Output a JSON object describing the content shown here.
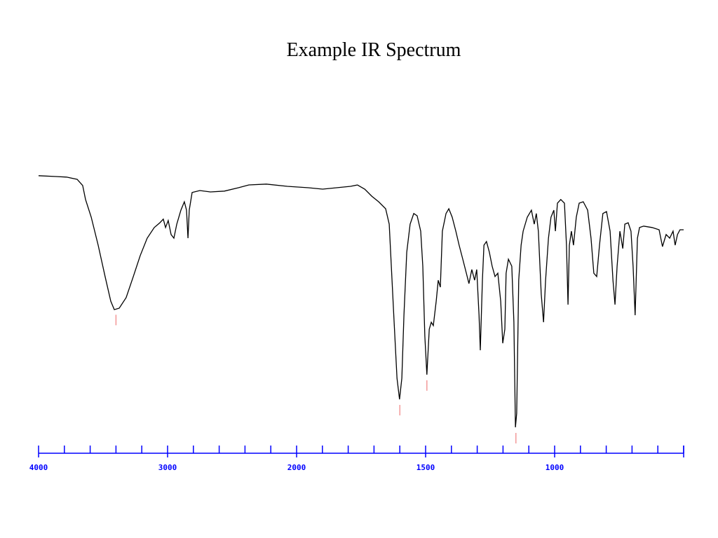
{
  "chart_data": {
    "type": "line",
    "title": "Example IR Spectrum",
    "xlim": [
      4000,
      500
    ],
    "xscale": {
      "break": 2000,
      "factor": 2
    },
    "xticks": [
      4000,
      3000,
      2000,
      1500,
      1000
    ],
    "xminor_ticks": [
      3800,
      3600,
      3400,
      3200,
      2800,
      2600,
      2400,
      2200,
      1900,
      1800,
      1700,
      1600,
      1400,
      1300,
      1200,
      1100,
      900,
      800,
      700,
      600,
      500
    ],
    "ylim": [
      0,
      100
    ],
    "axis_color": "#0000ff",
    "peak_color": "#f08080",
    "peaks": [
      3400,
      1600,
      1495,
      1150
    ],
    "x": [
      4000,
      3864,
      3783,
      3701,
      3658,
      3636,
      3592,
      3538,
      3484,
      3440,
      3413,
      3375,
      3321,
      3266,
      3212,
      3158,
      3103,
      3060,
      3033,
      3016,
      2995,
      2973,
      2951,
      2929,
      2897,
      2870,
      2853,
      2842,
      2832,
      2810,
      2750,
      2668,
      2560,
      2451,
      2370,
      2234,
      2071,
      1954,
      1899,
      1845,
      1791,
      1764,
      1736,
      1709,
      1682,
      1655,
      1641,
      1633,
      1622,
      1611,
      1601,
      1592,
      1584,
      1573,
      1560,
      1546,
      1533,
      1519,
      1511,
      1503,
      1495,
      1486,
      1478,
      1470,
      1459,
      1451,
      1443,
      1435,
      1421,
      1410,
      1397,
      1383,
      1370,
      1356,
      1342,
      1332,
      1321,
      1310,
      1302,
      1293,
      1288,
      1280,
      1274,
      1264,
      1253,
      1242,
      1231,
      1220,
      1209,
      1201,
      1193,
      1188,
      1179,
      1166,
      1158,
      1152,
      1147,
      1139,
      1130,
      1122,
      1106,
      1090,
      1079,
      1071,
      1063,
      1052,
      1043,
      1035,
      1024,
      1014,
      1003,
      997,
      989,
      976,
      962,
      954,
      948,
      943,
      935,
      927,
      916,
      905,
      889,
      872,
      859,
      848,
      837,
      826,
      813,
      799,
      785,
      774,
      766,
      758,
      747,
      736,
      728,
      715,
      704,
      696,
      688,
      679,
      671,
      655,
      622,
      595,
      582,
      568,
      554,
      541,
      533,
      524,
      514,
      500
    ],
    "series": [
      {
        "color": "#000000",
        "values": [
          94.8,
          94.5,
          94.3,
          93.5,
          91.3,
          86.3,
          80,
          70,
          58.8,
          50,
          47,
          47.5,
          51.3,
          58.8,
          66.3,
          72.5,
          76.3,
          78,
          79.3,
          76.3,
          78.8,
          73.8,
          72.5,
          77.5,
          82.5,
          85.5,
          82.5,
          72.5,
          82.5,
          88.8,
          89.5,
          89,
          89.3,
          90.5,
          91.5,
          91.8,
          91,
          90.5,
          90,
          90.5,
          91,
          91.5,
          90,
          87.5,
          85.5,
          83,
          77.5,
          62.5,
          42.5,
          22.5,
          15,
          22.5,
          45,
          67.5,
          77.5,
          81.3,
          80.5,
          75,
          62.5,
          37.5,
          23.8,
          40,
          42.5,
          41.3,
          50,
          57.5,
          55,
          75,
          81.3,
          83,
          80,
          75,
          70,
          65,
          60,
          56.3,
          61.3,
          57.5,
          61.3,
          45,
          32.5,
          57.5,
          70,
          71.3,
          67.5,
          62.5,
          58.8,
          60,
          50,
          35,
          40,
          60,
          65,
          62.5,
          42.5,
          5,
          10,
          57.5,
          70,
          75,
          80,
          82.5,
          77.5,
          81.3,
          75,
          52.5,
          42.5,
          57.5,
          72.5,
          80,
          82.5,
          75,
          85,
          86.3,
          85,
          70,
          48.8,
          70,
          75,
          70,
          80,
          85,
          85.5,
          82.5,
          72.5,
          60,
          58.8,
          70,
          81.3,
          82,
          75,
          57.5,
          48.8,
          62.5,
          75,
          68.8,
          77.5,
          78,
          75,
          62.5,
          45,
          72.5,
          76.3,
          76.8,
          76.3,
          75.5,
          69.5,
          73.8,
          72.5,
          75,
          70,
          73.8,
          75.5,
          75.5
        ]
      }
    ]
  }
}
